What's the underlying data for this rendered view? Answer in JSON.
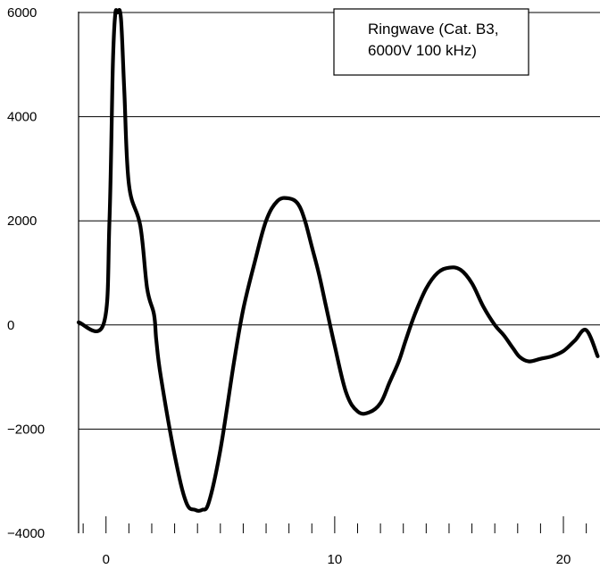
{
  "chart_data": {
    "type": "line",
    "title": "",
    "xlabel": "",
    "ylabel": "",
    "xlim": [
      -1.2,
      21.6
    ],
    "ylim": [
      -4000,
      6000
    ],
    "xticks": [
      0,
      10,
      20
    ],
    "xtick_labels": [
      "0",
      "10",
      "20"
    ],
    "yticks": [
      6000,
      4000,
      2000,
      0,
      -2000,
      -4000
    ],
    "ytick_labels": [
      "6000",
      "4000",
      "2000",
      "0",
      "−2000",
      "−4000"
    ],
    "grid": "horizontal",
    "legend": {
      "placement": "top-right",
      "lines": [
        "Ringwave (Cat. B3,",
        "6000V 100 kHz)"
      ]
    },
    "series": [
      {
        "color": "#000000",
        "x": [
          -1.2,
          -0.1,
          0.15,
          0.3,
          0.4,
          0.5,
          0.65,
          0.8,
          1.0,
          1.5,
          1.8,
          2.1,
          2.2,
          2.4,
          3.0,
          3.5,
          3.9,
          4.2,
          4.5,
          5.0,
          5.6,
          6.0,
          6.5,
          7.0,
          7.5,
          8.0,
          8.4,
          8.7,
          9.0,
          9.3,
          9.6,
          10.0,
          10.5,
          11.0,
          11.5,
          12.0,
          12.4,
          12.8,
          13.1,
          13.5,
          14.0,
          14.5,
          15.0,
          15.5,
          16.0,
          16.5,
          17.0,
          17.4,
          17.8,
          18.1,
          18.5,
          19.0,
          19.5,
          20.0,
          20.5,
          21.0,
          21.5
        ],
        "y": [
          50,
          30,
          2000,
          5000,
          5950,
          6000,
          5900,
          4500,
          2700,
          1900,
          700,
          200,
          -300,
          -1000,
          -2500,
          -3400,
          -3550,
          -3550,
          -3400,
          -2400,
          -700,
          300,
          1200,
          2000,
          2380,
          2430,
          2320,
          2000,
          1500,
          1000,
          400,
          -400,
          -1300,
          -1660,
          -1680,
          -1500,
          -1100,
          -700,
          -300,
          200,
          700,
          1000,
          1100,
          1060,
          800,
          350,
          0,
          -200,
          -450,
          -620,
          -700,
          -650,
          -600,
          -500,
          -300,
          -100,
          -600
        ]
      }
    ]
  }
}
